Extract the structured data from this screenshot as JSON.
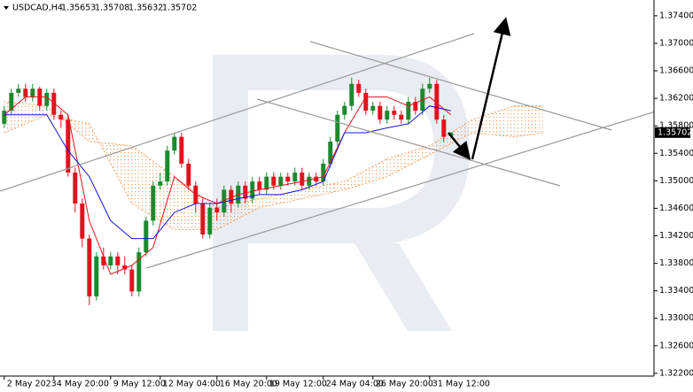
{
  "chart_data": {
    "type": "candlestick",
    "title": "USDCAD,H4",
    "up_color": "#1b8a2e",
    "down_color": "#e0141e",
    "ylim": [
      1.3216,
      1.3763
    ],
    "xlim": [
      -0.6,
      91.65
    ],
    "yticks": [
      {
        "value": 1.374,
        "label": "1.37400"
      },
      {
        "value": 1.37,
        "label": "1.37000"
      },
      {
        "value": 1.366,
        "label": "1.36600"
      },
      {
        "value": 1.362,
        "label": "1.36200"
      },
      {
        "value": 1.358,
        "label": "1.35800"
      },
      {
        "value": 1.354,
        "label": "1.35400"
      },
      {
        "value": 1.35,
        "label": "1.35000"
      },
      {
        "value": 1.346,
        "label": "1.34600"
      },
      {
        "value": 1.342,
        "label": "1.34200"
      },
      {
        "value": 1.338,
        "label": "1.33800"
      },
      {
        "value": 1.334,
        "label": "1.33400"
      },
      {
        "value": 1.33,
        "label": "1.33000"
      },
      {
        "value": 1.326,
        "label": "1.32600"
      },
      {
        "value": 1.322,
        "label": "1.32200"
      }
    ],
    "xticks": [
      {
        "value": 0,
        "label": "2 May 2023"
      },
      {
        "value": 7,
        "label": "4 May 20:00"
      },
      {
        "value": 15,
        "label": "9 May 12:00"
      },
      {
        "value": 22,
        "label": "12 May 04:00"
      },
      {
        "value": 30,
        "label": "16 May 20:00"
      },
      {
        "value": 37,
        "label": "19 May 12:00"
      },
      {
        "value": 45,
        "label": "24 May 04:00"
      },
      {
        "value": 52,
        "label": "26 May 20:00"
      },
      {
        "value": 60,
        "label": "31 May 12:00"
      }
    ],
    "open": [
      1.3583,
      1.3602,
      1.3628,
      1.3634,
      1.3622,
      1.3634,
      1.3609,
      1.3628,
      1.3596,
      1.3589,
      1.3512,
      1.3467,
      1.3416,
      1.3332,
      1.339,
      1.3377,
      1.339,
      1.3377,
      1.3371,
      1.3339,
      1.3396,
      1.3442,
      1.3493,
      1.3499,
      1.3544,
      1.3564,
      1.3525,
      1.3493,
      1.3467,
      1.3422,
      1.3461,
      1.3454,
      1.3487,
      1.3467,
      1.3493,
      1.3474,
      1.3499,
      1.3487,
      1.3506,
      1.3493,
      1.3506,
      1.3499,
      1.3512,
      1.3493,
      1.3506,
      1.3499,
      1.3525,
      1.3557,
      1.3596,
      1.3609,
      1.3641,
      1.3628,
      1.3602,
      1.3609,
      1.3589,
      1.3602,
      1.3596,
      1.3589,
      1.3615,
      1.3602,
      1.3634,
      1.3641,
      1.3589,
      1.35653
    ],
    "high": [
      1.3609,
      1.3634,
      1.3641,
      1.3641,
      1.3641,
      1.3637,
      1.3634,
      1.3634,
      1.3602,
      1.3596,
      1.3519,
      1.3474,
      1.3422,
      1.3396,
      1.3403,
      1.3396,
      1.3396,
      1.339,
      1.3377,
      1.3403,
      1.3448,
      1.3499,
      1.3512,
      1.3551,
      1.357,
      1.357,
      1.3532,
      1.3499,
      1.3474,
      1.3467,
      1.3474,
      1.3493,
      1.3493,
      1.3499,
      1.3499,
      1.3506,
      1.3506,
      1.3512,
      1.3512,
      1.3512,
      1.3512,
      1.3519,
      1.3519,
      1.3512,
      1.3512,
      1.3532,
      1.3564,
      1.3602,
      1.3615,
      1.365,
      1.3647,
      1.3634,
      1.3615,
      1.3615,
      1.3609,
      1.3609,
      1.3602,
      1.3622,
      1.3622,
      1.3641,
      1.365,
      1.3647,
      1.3596,
      1.35708
    ],
    "low": [
      1.3577,
      1.3596,
      1.3622,
      1.3615,
      1.3615,
      1.3602,
      1.3602,
      1.3589,
      1.3577,
      1.3506,
      1.3454,
      1.3403,
      1.3319,
      1.3326,
      1.3371,
      1.3371,
      1.3364,
      1.3364,
      1.3332,
      1.3332,
      1.339,
      1.3435,
      1.3487,
      1.3493,
      1.3538,
      1.3519,
      1.3487,
      1.3454,
      1.3416,
      1.3416,
      1.3442,
      1.3448,
      1.3454,
      1.3461,
      1.3467,
      1.3467,
      1.348,
      1.348,
      1.3487,
      1.3487,
      1.3493,
      1.3493,
      1.3487,
      1.3487,
      1.3493,
      1.3493,
      1.3519,
      1.3551,
      1.3589,
      1.3602,
      1.3622,
      1.3596,
      1.3596,
      1.3583,
      1.3583,
      1.3589,
      1.3583,
      1.3583,
      1.3596,
      1.3596,
      1.3628,
      1.3583,
      1.3557,
      1.35632
    ],
    "close": [
      1.3602,
      1.3628,
      1.3634,
      1.3622,
      1.3634,
      1.3609,
      1.3628,
      1.3596,
      1.3589,
      1.3512,
      1.3467,
      1.3416,
      1.3332,
      1.339,
      1.3377,
      1.339,
      1.3377,
      1.3371,
      1.3339,
      1.3396,
      1.3442,
      1.3493,
      1.3499,
      1.3544,
      1.3564,
      1.3525,
      1.3493,
      1.3467,
      1.3422,
      1.3461,
      1.3454,
      1.3487,
      1.3467,
      1.3493,
      1.3474,
      1.3499,
      1.3487,
      1.3506,
      1.3493,
      1.3506,
      1.3499,
      1.3512,
      1.3493,
      1.3506,
      1.3499,
      1.3525,
      1.3557,
      1.3596,
      1.3609,
      1.3641,
      1.3628,
      1.3602,
      1.3609,
      1.3589,
      1.3602,
      1.3596,
      1.3589,
      1.3615,
      1.3602,
      1.3634,
      1.3641,
      1.3589,
      1.3564,
      1.35702
    ],
    "lines": [
      {
        "color": "#e8131b",
        "x": [
          0,
          3,
          6,
          9,
          12,
          15,
          18,
          21,
          24,
          27,
          30,
          33,
          36,
          39,
          42,
          45,
          48,
          51,
          54,
          57,
          60,
          63
        ],
        "values": [
          1.3596,
          1.3622,
          1.3622,
          1.3596,
          1.3442,
          1.3364,
          1.3377,
          1.3403,
          1.3506,
          1.348,
          1.3467,
          1.348,
          1.3487,
          1.3493,
          1.3499,
          1.3506,
          1.357,
          1.3622,
          1.3622,
          1.3609,
          1.3622,
          1.3596
        ]
      },
      {
        "color": "#1515d6",
        "x": [
          0,
          3,
          6,
          9,
          12,
          15,
          18,
          21,
          24,
          27,
          30,
          33,
          36,
          39,
          42,
          45,
          48,
          51,
          54,
          57,
          60,
          63
        ],
        "values": [
          1.3596,
          1.3596,
          1.3596,
          1.3544,
          1.3506,
          1.3442,
          1.3416,
          1.3416,
          1.3454,
          1.3467,
          1.3467,
          1.3474,
          1.348,
          1.348,
          1.3487,
          1.3499,
          1.357,
          1.357,
          1.3577,
          1.3583,
          1.3609,
          1.3602
        ]
      }
    ],
    "cloud": {
      "color": "#f0883a",
      "x": [
        0,
        6,
        12,
        18,
        24,
        30,
        36,
        42,
        48,
        54,
        60,
        66,
        72,
        76
      ],
      "span_a": [
        1.3615,
        1.3609,
        1.3557,
        1.3551,
        1.3506,
        1.3461,
        1.3474,
        1.3487,
        1.3499,
        1.3532,
        1.3551,
        1.3589,
        1.3609,
        1.3609
      ],
      "span_b": [
        1.357,
        1.3596,
        1.3583,
        1.3467,
        1.3429,
        1.3429,
        1.3461,
        1.3474,
        1.3487,
        1.3506,
        1.3538,
        1.357,
        1.3564,
        1.357
      ]
    }
  }
}
